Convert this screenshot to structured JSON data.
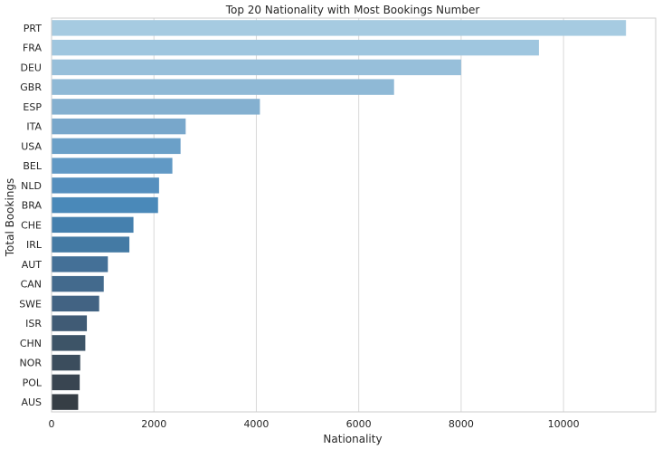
{
  "chart_data": {
    "type": "bar",
    "orientation": "horizontal",
    "title": "Top 20 Nationality with Most Bookings Number",
    "xlabel": "Nationality",
    "ylabel": "Total Bookings",
    "xlim": [
      0,
      11800
    ],
    "x_ticks": [
      0,
      2000,
      4000,
      6000,
      8000,
      10000
    ],
    "grid": true,
    "categories": [
      "PRT",
      "FRA",
      "DEU",
      "GBR",
      "ESP",
      "ITA",
      "USA",
      "BEL",
      "NLD",
      "BRA",
      "CHE",
      "IRL",
      "AUT",
      "CAN",
      "SWE",
      "ISR",
      "CHN",
      "NOR",
      "POL",
      "AUS"
    ],
    "values": [
      11220,
      9520,
      8000,
      6690,
      4070,
      2620,
      2520,
      2360,
      2100,
      2080,
      1600,
      1520,
      1100,
      1020,
      930,
      690,
      660,
      560,
      550,
      520
    ],
    "colors": [
      "#a6cbe1",
      "#9fc6df",
      "#97bfda",
      "#8fb9d6",
      "#84b0d0",
      "#78a7cb",
      "#6ba0c8",
      "#6199c5",
      "#558fbe",
      "#4a89b9",
      "#4580ae",
      "#447aa4",
      "#447097",
      "#436a8d",
      "#426383",
      "#405b75",
      "#3d5467",
      "#3b4d5d",
      "#394551",
      "#363e45"
    ]
  }
}
